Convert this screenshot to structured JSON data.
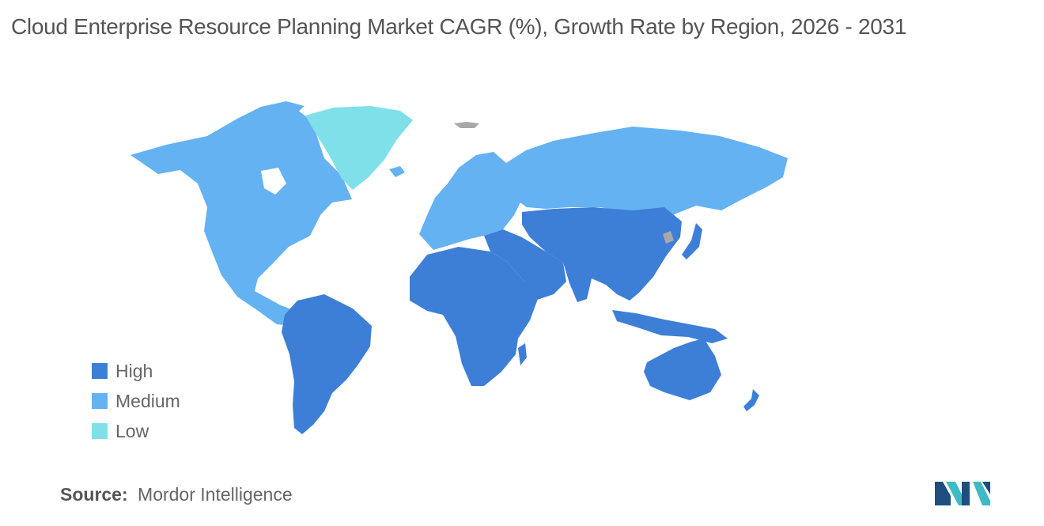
{
  "title": "Cloud Enterprise Resource Planning Market CAGR (%), Growth Rate by Region, 2026 - 2031",
  "colors": {
    "high": "#3d7fd6",
    "medium": "#64b2f2",
    "low": "#7fe0ea",
    "no_data": "#a8a8a8",
    "text": "#555555"
  },
  "legend": [
    {
      "label": "High",
      "color": "#3d7fd6"
    },
    {
      "label": "Medium",
      "color": "#64b2f2"
    },
    {
      "label": "Low",
      "color": "#7fe0ea"
    }
  ],
  "regions": {
    "north_america": "Medium",
    "greenland": "Low",
    "latin_america": "High",
    "europe": "Medium",
    "russia": "Medium",
    "africa": "High",
    "middle_east": "High",
    "asia_pacific": "High",
    "australia_new_zealand": "High"
  },
  "source": {
    "label": "Source:",
    "text": "Mordor Intelligence"
  },
  "logo": {
    "name": "mordor-intelligence-logo",
    "colors": [
      "#1d4e7f",
      "#3fb9c4"
    ]
  }
}
